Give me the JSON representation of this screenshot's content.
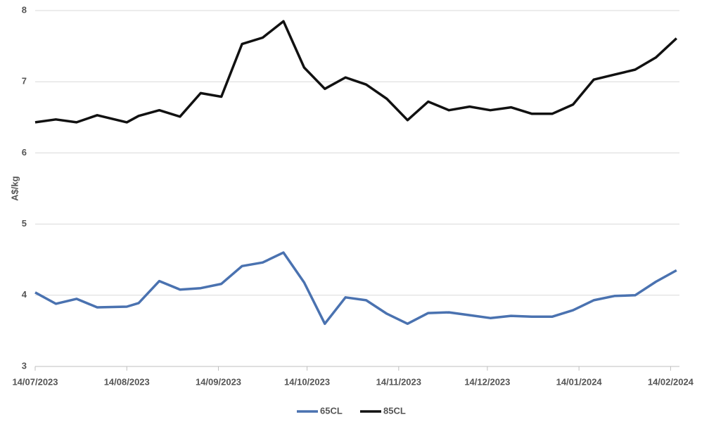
{
  "chart_data": {
    "type": "line",
    "y_label": "A$/kg",
    "x": [
      "2023-07-14",
      "2023-07-21",
      "2023-07-28",
      "2023-08-04",
      "2023-08-14",
      "2023-08-18",
      "2023-08-25",
      "2023-09-01",
      "2023-09-08",
      "2023-09-15",
      "2023-09-22",
      "2023-09-29",
      "2023-10-06",
      "2023-10-13",
      "2023-10-20",
      "2023-10-27",
      "2023-11-03",
      "2023-11-10",
      "2023-11-17",
      "2023-11-24",
      "2023-12-01",
      "2023-12-08",
      "2023-12-15",
      "2023-12-22",
      "2023-12-29",
      "2024-01-05",
      "2024-01-12",
      "2024-01-19",
      "2024-01-26",
      "2024-02-02",
      "2024-02-09",
      "2024-02-16"
    ],
    "series": [
      {
        "name": "65CL",
        "color": "#4a72b0",
        "values": [
          4.04,
          3.88,
          3.95,
          3.83,
          3.84,
          3.89,
          4.2,
          4.08,
          4.1,
          4.16,
          4.41,
          4.46,
          4.6,
          4.18,
          3.6,
          3.97,
          3.93,
          3.74,
          3.6,
          3.75,
          3.76,
          3.72,
          3.68,
          3.71,
          3.7,
          3.7,
          3.79,
          3.93,
          3.99,
          4.0,
          4.19,
          4.35
        ]
      },
      {
        "name": "85CL",
        "color": "#111111",
        "values": [
          6.43,
          6.47,
          6.43,
          6.53,
          6.43,
          6.52,
          6.6,
          6.51,
          6.84,
          6.79,
          7.53,
          7.62,
          7.85,
          7.2,
          6.9,
          7.06,
          6.96,
          6.76,
          6.46,
          6.72,
          6.6,
          6.65,
          6.6,
          6.64,
          6.55,
          6.55,
          6.68,
          7.03,
          7.1,
          7.17,
          7.34,
          7.61
        ]
      }
    ],
    "xlim": [
      "2023-07-14",
      "2024-02-17"
    ],
    "xticks": [
      {
        "value": "2023-07-14",
        "label": "14/07/2023"
      },
      {
        "value": "2023-08-14",
        "label": "14/08/2023"
      },
      {
        "value": "2023-09-14",
        "label": "14/09/2023"
      },
      {
        "value": "2023-10-14",
        "label": "14/10/2023"
      },
      {
        "value": "2023-11-14",
        "label": "14/11/2023"
      },
      {
        "value": "2023-12-14",
        "label": "14/12/2023"
      },
      {
        "value": "2024-01-14",
        "label": "14/01/2024"
      },
      {
        "value": "2024-02-14",
        "label": "14/02/2024"
      }
    ],
    "ylim": [
      3,
      8
    ],
    "yticks": [
      3,
      4,
      5,
      6,
      7,
      8
    ],
    "grid": true,
    "legend": "bottom"
  }
}
